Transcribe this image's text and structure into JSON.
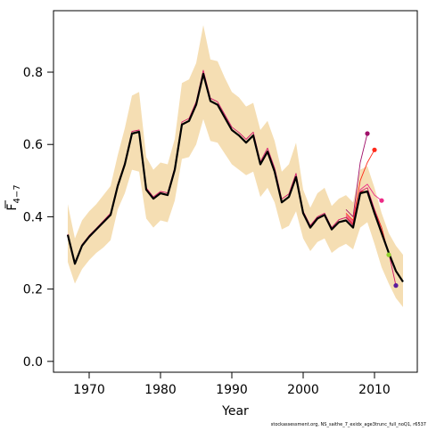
{
  "chart_data": {
    "type": "line",
    "xlabel": "Year",
    "ylabel": "F",
    "ylabel_sub": "4−7",
    "xlim": [
      1965,
      2016
    ],
    "ylim": [
      -0.03,
      0.97
    ],
    "xticks": [
      1970,
      1980,
      1990,
      2000,
      2010
    ],
    "yticks": [
      0.0,
      0.2,
      0.4,
      0.6,
      0.8
    ],
    "ytick_labels": [
      "0.0",
      "0.2",
      "0.4",
      "0.6",
      "0.8"
    ],
    "grid": false,
    "band_color": "#f5deb3",
    "confidence_band": {
      "x": [
        1967,
        1968,
        1969,
        1970,
        1971,
        1972,
        1973,
        1974,
        1975,
        1976,
        1977,
        1978,
        1979,
        1980,
        1981,
        1982,
        1983,
        1984,
        1985,
        1986,
        1987,
        1988,
        1989,
        1990,
        1991,
        1992,
        1993,
        1994,
        1995,
        1996,
        1997,
        1998,
        1999,
        2000,
        2001,
        2002,
        2003,
        2004,
        2005,
        2006,
        2007,
        2008,
        2009,
        2010,
        2011,
        2012,
        2013,
        2014
      ],
      "upper": [
        0.435,
        0.34,
        0.39,
        0.415,
        0.435,
        0.46,
        0.485,
        0.57,
        0.645,
        0.735,
        0.745,
        0.565,
        0.53,
        0.55,
        0.545,
        0.615,
        0.77,
        0.78,
        0.825,
        0.93,
        0.835,
        0.83,
        0.785,
        0.745,
        0.73,
        0.705,
        0.715,
        0.64,
        0.665,
        0.61,
        0.525,
        0.545,
        0.605,
        0.475,
        0.425,
        0.465,
        0.48,
        0.43,
        0.45,
        0.46,
        0.44,
        0.53,
        0.54,
        0.48,
        0.41,
        0.355,
        0.32,
        0.295
      ],
      "lower": [
        0.275,
        0.215,
        0.255,
        0.28,
        0.3,
        0.315,
        0.335,
        0.42,
        0.465,
        0.53,
        0.525,
        0.395,
        0.37,
        0.39,
        0.385,
        0.445,
        0.56,
        0.565,
        0.6,
        0.67,
        0.61,
        0.605,
        0.575,
        0.545,
        0.53,
        0.515,
        0.525,
        0.455,
        0.48,
        0.44,
        0.365,
        0.375,
        0.415,
        0.34,
        0.305,
        0.33,
        0.34,
        0.3,
        0.315,
        0.325,
        0.31,
        0.37,
        0.385,
        0.325,
        0.26,
        0.215,
        0.175,
        0.15
      ]
    },
    "series": [
      {
        "color": "#000000",
        "x": [
          1967,
          1968,
          1969,
          1970,
          1971,
          1972,
          1973,
          1974,
          1975,
          1976,
          1977,
          1978,
          1979,
          1980,
          1981,
          1982,
          1983,
          1984,
          1985,
          1986,
          1987,
          1988,
          1989,
          1990,
          1991,
          1992,
          1993,
          1994,
          1995,
          1996,
          1997,
          1998,
          1999,
          2000,
          2001,
          2002,
          2003,
          2004,
          2005,
          2006,
          2007,
          2008,
          2009,
          2010,
          2011,
          2012,
          2013,
          2014
        ],
        "y": [
          0.35,
          0.27,
          0.32,
          0.345,
          0.365,
          0.385,
          0.405,
          0.485,
          0.545,
          0.63,
          0.635,
          0.475,
          0.45,
          0.465,
          0.46,
          0.53,
          0.655,
          0.665,
          0.71,
          0.795,
          0.72,
          0.71,
          0.675,
          0.64,
          0.625,
          0.605,
          0.625,
          0.545,
          0.58,
          0.525,
          0.44,
          0.455,
          0.51,
          0.41,
          0.37,
          0.395,
          0.405,
          0.365,
          0.385,
          0.39,
          0.37,
          0.465,
          0.47,
          0.41,
          0.355,
          0.3,
          0.25,
          0.22
        ]
      },
      {
        "color": "#d0186a",
        "x": [
          1967,
          1968,
          1969,
          1970,
          1971,
          1972,
          1973,
          1974,
          1975,
          1976,
          1977,
          1978,
          1979,
          1980,
          1981,
          1982,
          1983,
          1984,
          1985,
          1986,
          1987,
          1988,
          1989,
          1990,
          1991,
          1992,
          1993,
          1994,
          1995,
          1996,
          1997,
          1998,
          1999,
          2000,
          2001,
          2002,
          2003,
          2004,
          2005,
          2006,
          2007,
          2008,
          2009,
          2010,
          2011,
          2012,
          2013
        ],
        "y": [
          0.352,
          0.272,
          0.323,
          0.348,
          0.368,
          0.389,
          0.41,
          0.49,
          0.55,
          0.636,
          0.64,
          0.48,
          0.455,
          0.47,
          0.466,
          0.536,
          0.662,
          0.672,
          0.718,
          0.805,
          0.728,
          0.718,
          0.683,
          0.648,
          0.633,
          0.614,
          0.634,
          0.552,
          0.59,
          0.535,
          0.449,
          0.463,
          0.52,
          0.415,
          0.376,
          0.4,
          0.41,
          0.37,
          0.392,
          0.398,
          0.376,
          0.47,
          0.48,
          0.42,
          0.36,
          0.3,
          0.21
        ],
        "end_point": {
          "x": 2013,
          "y": 0.21,
          "color": "#5b1a9c"
        }
      },
      {
        "color": "#e8201c",
        "x": [
          2006,
          2007,
          2008,
          2009,
          2010,
          2011,
          2012
        ],
        "y": [
          0.4,
          0.38,
          0.47,
          0.47,
          0.42,
          0.37,
          0.295
        ],
        "end_point": {
          "x": 2012,
          "y": 0.295,
          "color": "#8fd12a"
        }
      },
      {
        "color": "#ec2b86",
        "x": [
          2006,
          2007,
          2008,
          2009,
          2010,
          2011
        ],
        "y": [
          0.405,
          0.385,
          0.475,
          0.49,
          0.46,
          0.445
        ],
        "end_point": {
          "x": 2011,
          "y": 0.445,
          "color": "#ec2b86"
        }
      },
      {
        "color": "#ff2a1a",
        "x": [
          2006,
          2007,
          2008,
          2009,
          2010
        ],
        "y": [
          0.41,
          0.39,
          0.5,
          0.55,
          0.585
        ],
        "end_point": {
          "x": 2010,
          "y": 0.585,
          "color": "#ff2a1a"
        }
      },
      {
        "color": "#a0106a",
        "x": [
          2006,
          2007,
          2008,
          2009
        ],
        "y": [
          0.42,
          0.4,
          0.55,
          0.63
        ],
        "end_point": {
          "x": 2009,
          "y": 0.63,
          "color": "#a0106a"
        }
      }
    ],
    "credit": "stockassessment.org, NS_saithe_7_exidx_age3trunc_full_noQ1, r6537"
  }
}
